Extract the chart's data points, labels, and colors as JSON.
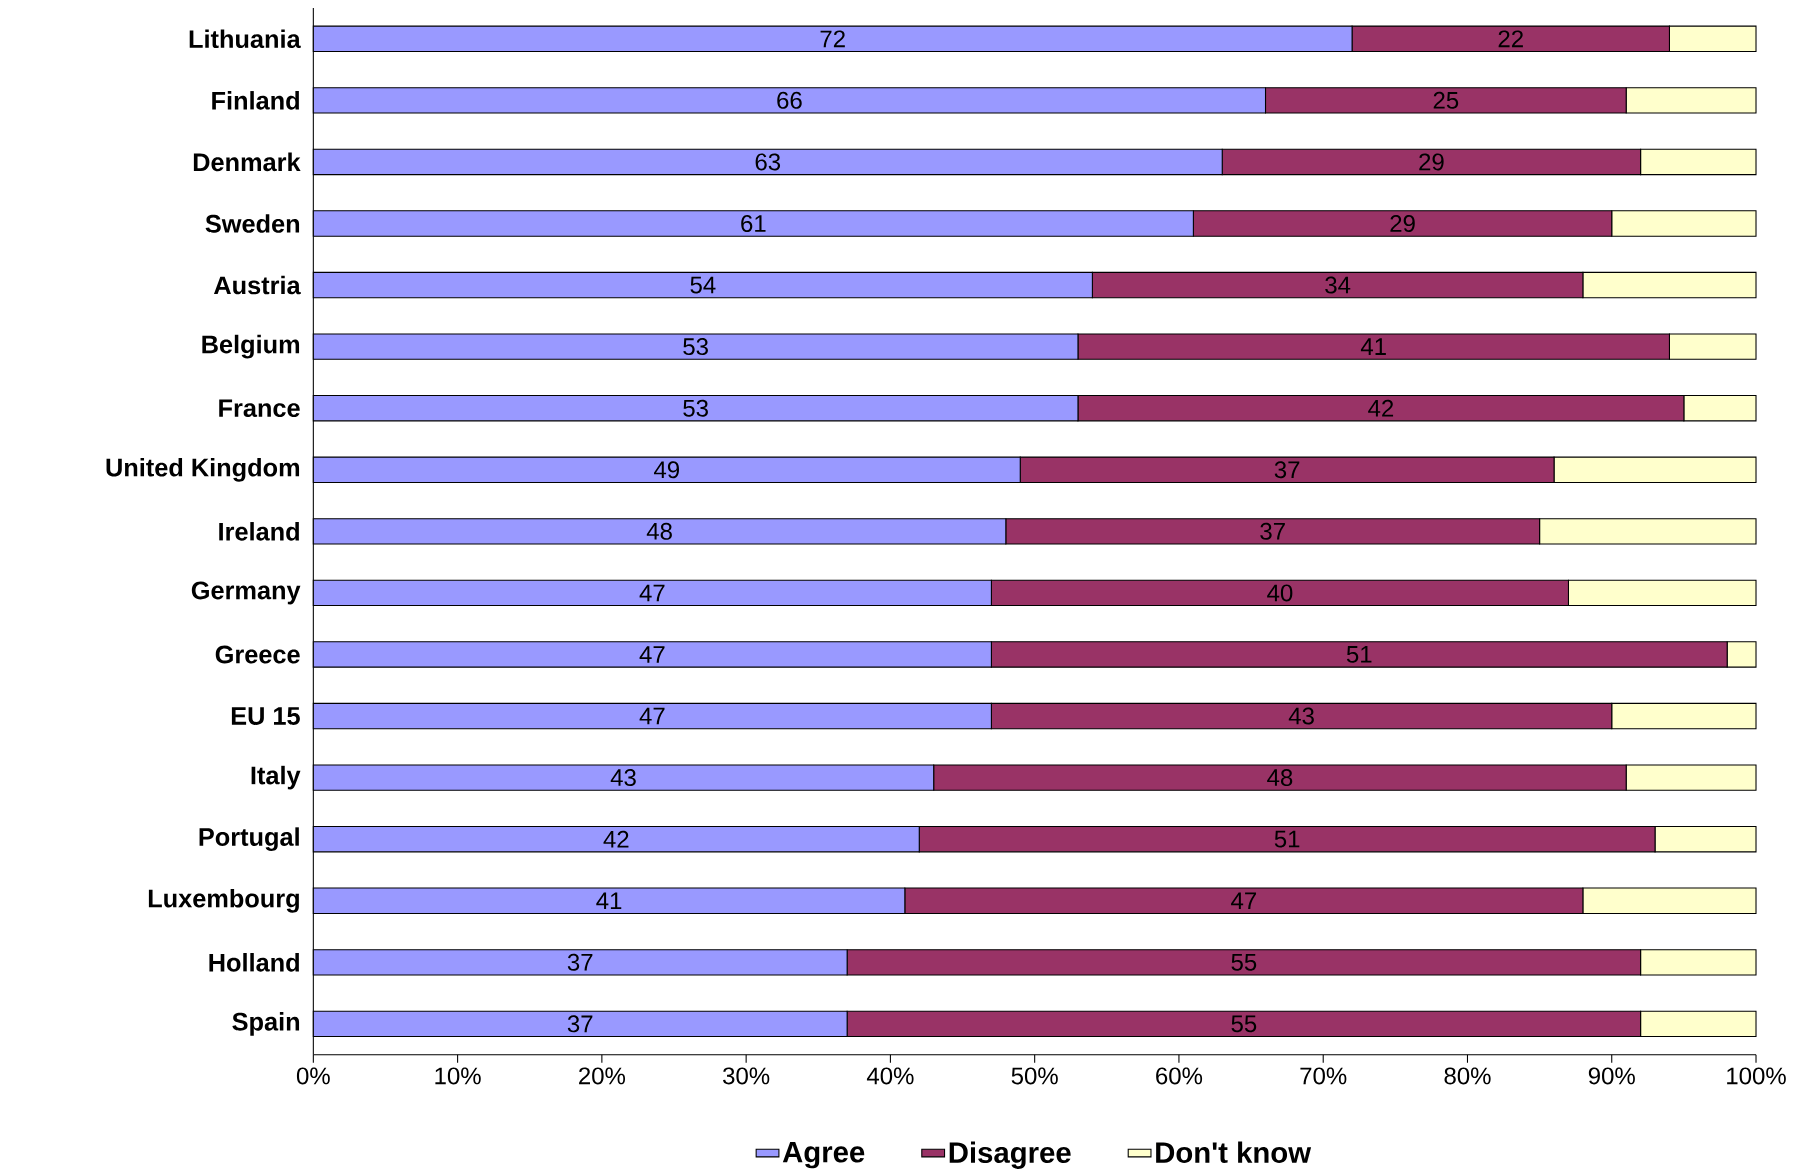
{
  "chart_data": {
    "type": "bar",
    "orientation": "horizontal",
    "stacked": true,
    "legend": "bottom",
    "categories": [
      "Lithuania",
      "Finland",
      "Denmark",
      "Sweden",
      "Austria",
      "Belgium",
      "France",
      "United Kingdom",
      "Ireland",
      "Germany",
      "Greece",
      "EU 15",
      "Italy",
      "Portugal",
      "Luxembourg",
      "Holland",
      "Spain"
    ],
    "series": [
      {
        "name": "Agree",
        "color": "#9999ff",
        "values": [
          72,
          66,
          63,
          61,
          54,
          53,
          53,
          49,
          48,
          47,
          47,
          47,
          43,
          42,
          41,
          37,
          37
        ],
        "value_labels": [
          "72",
          "66",
          "63",
          "61",
          "54",
          "53",
          "53",
          "49",
          "48",
          "47",
          "47",
          "47",
          "43",
          "42",
          "41",
          "37",
          "37"
        ]
      },
      {
        "name": "Disagree",
        "color": "#993366",
        "values": [
          22,
          25,
          29,
          29,
          34,
          41,
          42,
          37,
          37,
          40,
          51,
          43,
          48,
          51,
          47,
          55,
          55
        ],
        "value_labels": [
          "22",
          "25",
          "29",
          "29",
          "34",
          "41",
          "42",
          "37",
          "37",
          "40",
          "51",
          "43",
          "48",
          "51",
          "47",
          "55",
          "55"
        ]
      },
      {
        "name": "Don't know",
        "color": "#ffffcc",
        "values": [
          6,
          9,
          8,
          10,
          12,
          6,
          5,
          14,
          15,
          13,
          2,
          10,
          9,
          7,
          12,
          8,
          8
        ]
      }
    ],
    "xlim": [
      0,
      100
    ],
    "xticks": [
      {
        "value": 0,
        "label": "0%"
      },
      {
        "value": 10,
        "label": "10%"
      },
      {
        "value": 20,
        "label": "20%"
      },
      {
        "value": 30,
        "label": "30%"
      },
      {
        "value": 40,
        "label": "40%"
      },
      {
        "value": 50,
        "label": "50%"
      },
      {
        "value": 60,
        "label": "60%"
      },
      {
        "value": 70,
        "label": "70%"
      },
      {
        "value": 80,
        "label": "80%"
      },
      {
        "value": 90,
        "label": "90%"
      },
      {
        "value": 100,
        "label": "100%"
      }
    ]
  }
}
